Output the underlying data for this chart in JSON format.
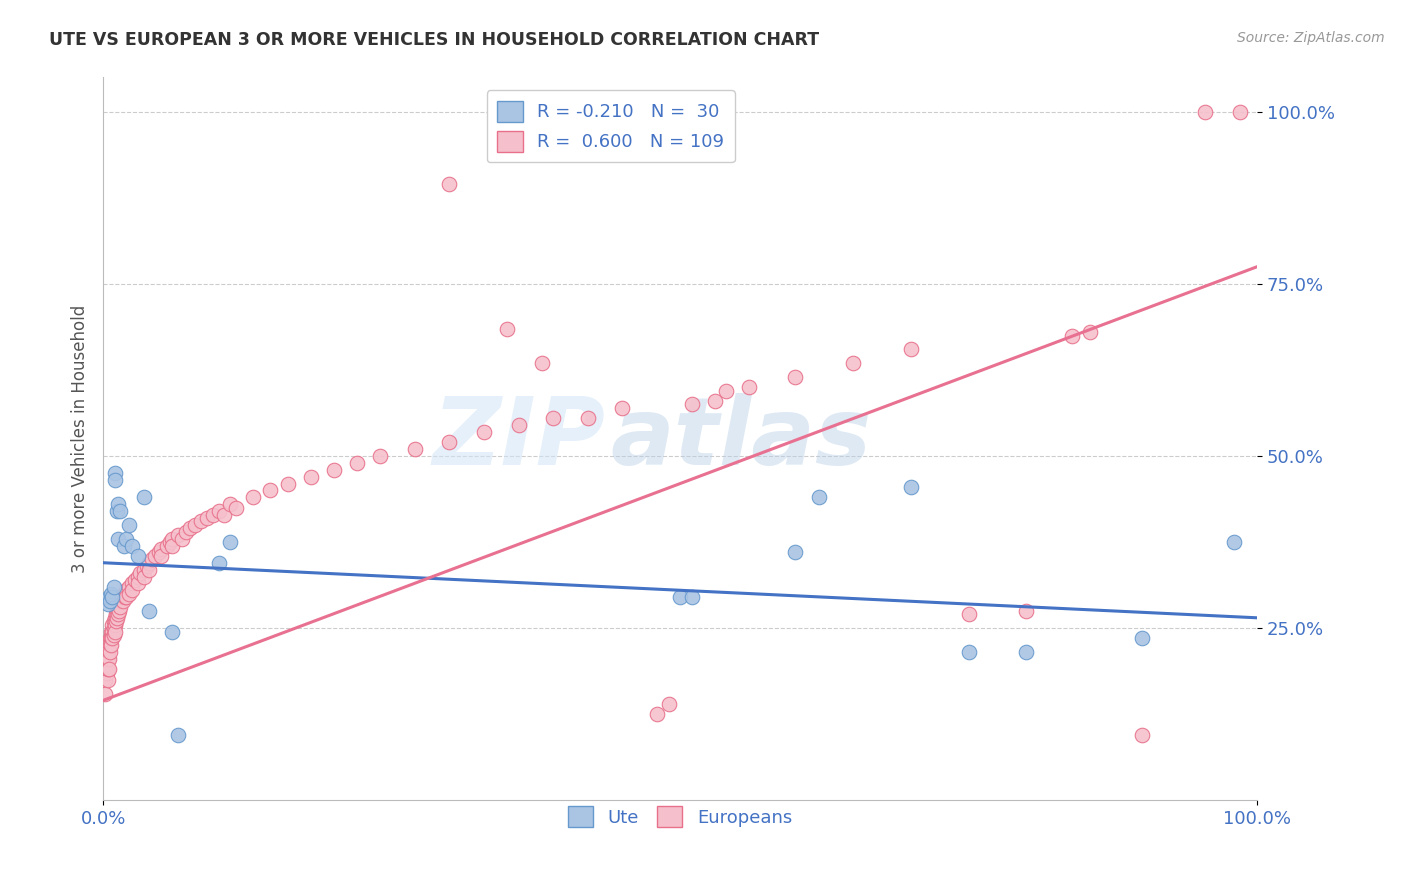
{
  "title": "UTE VS EUROPEAN 3 OR MORE VEHICLES IN HOUSEHOLD CORRELATION CHART",
  "source": "Source: ZipAtlas.com",
  "ylabel": "3 or more Vehicles in Household",
  "watermark_line1": "ZIP",
  "watermark_line2": "atlas",
  "x_min": 0.0,
  "x_max": 1.0,
  "y_min": 0.0,
  "y_max": 1.05,
  "ytick_positions": [
    0.25,
    0.5,
    0.75,
    1.0
  ],
  "ytick_labels": [
    "25.0%",
    "50.0%",
    "75.0%",
    "100.0%"
  ],
  "ute_color": "#aac4e4",
  "ute_edge_color": "#6699cc",
  "europeans_color": "#f5c0cc",
  "europeans_edge_color": "#e8708a",
  "line_ute_color": "#4472c4",
  "line_europeans_color": "#e87090",
  "background_color": "#ffffff",
  "grid_color": "#cccccc",
  "title_color": "#333333",
  "label_color": "#4472c4",
  "ute_line_y0": 0.345,
  "ute_line_y1": 0.265,
  "eur_line_y0": 0.145,
  "eur_line_y1": 0.775,
  "ute_points": [
    [
      0.004,
      0.285
    ],
    [
      0.005,
      0.295
    ],
    [
      0.006,
      0.29
    ],
    [
      0.007,
      0.3
    ],
    [
      0.008,
      0.295
    ],
    [
      0.009,
      0.31
    ],
    [
      0.01,
      0.475
    ],
    [
      0.01,
      0.465
    ],
    [
      0.012,
      0.42
    ],
    [
      0.013,
      0.43
    ],
    [
      0.013,
      0.38
    ],
    [
      0.015,
      0.42
    ],
    [
      0.018,
      0.37
    ],
    [
      0.02,
      0.38
    ],
    [
      0.022,
      0.4
    ],
    [
      0.025,
      0.37
    ],
    [
      0.03,
      0.355
    ],
    [
      0.035,
      0.44
    ],
    [
      0.04,
      0.275
    ],
    [
      0.06,
      0.245
    ],
    [
      0.065,
      0.095
    ],
    [
      0.1,
      0.345
    ],
    [
      0.11,
      0.375
    ],
    [
      0.5,
      0.295
    ],
    [
      0.51,
      0.295
    ],
    [
      0.6,
      0.36
    ],
    [
      0.62,
      0.44
    ],
    [
      0.7,
      0.455
    ],
    [
      0.75,
      0.215
    ],
    [
      0.8,
      0.215
    ],
    [
      0.9,
      0.235
    ],
    [
      0.98,
      0.375
    ]
  ],
  "europeans_points": [
    [
      0.002,
      0.175
    ],
    [
      0.002,
      0.155
    ],
    [
      0.003,
      0.185
    ],
    [
      0.003,
      0.19
    ],
    [
      0.003,
      0.195
    ],
    [
      0.004,
      0.205
    ],
    [
      0.004,
      0.175
    ],
    [
      0.004,
      0.19
    ],
    [
      0.005,
      0.22
    ],
    [
      0.005,
      0.205
    ],
    [
      0.005,
      0.19
    ],
    [
      0.006,
      0.235
    ],
    [
      0.006,
      0.225
    ],
    [
      0.006,
      0.215
    ],
    [
      0.007,
      0.245
    ],
    [
      0.007,
      0.235
    ],
    [
      0.007,
      0.225
    ],
    [
      0.008,
      0.255
    ],
    [
      0.008,
      0.245
    ],
    [
      0.008,
      0.235
    ],
    [
      0.009,
      0.26
    ],
    [
      0.009,
      0.25
    ],
    [
      0.009,
      0.24
    ],
    [
      0.01,
      0.265
    ],
    [
      0.01,
      0.255
    ],
    [
      0.01,
      0.245
    ],
    [
      0.011,
      0.27
    ],
    [
      0.011,
      0.26
    ],
    [
      0.012,
      0.275
    ],
    [
      0.012,
      0.265
    ],
    [
      0.013,
      0.28
    ],
    [
      0.013,
      0.27
    ],
    [
      0.014,
      0.285
    ],
    [
      0.014,
      0.275
    ],
    [
      0.015,
      0.29
    ],
    [
      0.015,
      0.28
    ],
    [
      0.016,
      0.295
    ],
    [
      0.017,
      0.29
    ],
    [
      0.018,
      0.3
    ],
    [
      0.019,
      0.295
    ],
    [
      0.02,
      0.305
    ],
    [
      0.02,
      0.295
    ],
    [
      0.022,
      0.31
    ],
    [
      0.022,
      0.3
    ],
    [
      0.025,
      0.315
    ],
    [
      0.025,
      0.305
    ],
    [
      0.028,
      0.32
    ],
    [
      0.03,
      0.325
    ],
    [
      0.03,
      0.315
    ],
    [
      0.032,
      0.33
    ],
    [
      0.035,
      0.335
    ],
    [
      0.035,
      0.325
    ],
    [
      0.038,
      0.34
    ],
    [
      0.04,
      0.345
    ],
    [
      0.04,
      0.335
    ],
    [
      0.042,
      0.35
    ],
    [
      0.045,
      0.355
    ],
    [
      0.048,
      0.36
    ],
    [
      0.05,
      0.365
    ],
    [
      0.05,
      0.355
    ],
    [
      0.055,
      0.37
    ],
    [
      0.058,
      0.375
    ],
    [
      0.06,
      0.38
    ],
    [
      0.06,
      0.37
    ],
    [
      0.065,
      0.385
    ],
    [
      0.068,
      0.38
    ],
    [
      0.072,
      0.39
    ],
    [
      0.075,
      0.395
    ],
    [
      0.08,
      0.4
    ],
    [
      0.085,
      0.405
    ],
    [
      0.09,
      0.41
    ],
    [
      0.095,
      0.415
    ],
    [
      0.1,
      0.42
    ],
    [
      0.105,
      0.415
    ],
    [
      0.11,
      0.43
    ],
    [
      0.115,
      0.425
    ],
    [
      0.13,
      0.44
    ],
    [
      0.145,
      0.45
    ],
    [
      0.16,
      0.46
    ],
    [
      0.18,
      0.47
    ],
    [
      0.2,
      0.48
    ],
    [
      0.22,
      0.49
    ],
    [
      0.24,
      0.5
    ],
    [
      0.27,
      0.51
    ],
    [
      0.3,
      0.52
    ],
    [
      0.33,
      0.535
    ],
    [
      0.36,
      0.545
    ],
    [
      0.39,
      0.555
    ],
    [
      0.3,
      0.895
    ],
    [
      0.35,
      0.685
    ],
    [
      0.38,
      0.635
    ],
    [
      0.42,
      0.555
    ],
    [
      0.45,
      0.57
    ],
    [
      0.48,
      0.125
    ],
    [
      0.49,
      0.14
    ],
    [
      0.51,
      0.575
    ],
    [
      0.53,
      0.58
    ],
    [
      0.54,
      0.595
    ],
    [
      0.56,
      0.6
    ],
    [
      0.6,
      0.615
    ],
    [
      0.65,
      0.635
    ],
    [
      0.7,
      0.655
    ],
    [
      0.75,
      0.27
    ],
    [
      0.8,
      0.275
    ],
    [
      0.84,
      0.675
    ],
    [
      0.855,
      0.68
    ],
    [
      0.9,
      0.095
    ],
    [
      0.955,
      1.0
    ],
    [
      0.985,
      1.0
    ]
  ]
}
